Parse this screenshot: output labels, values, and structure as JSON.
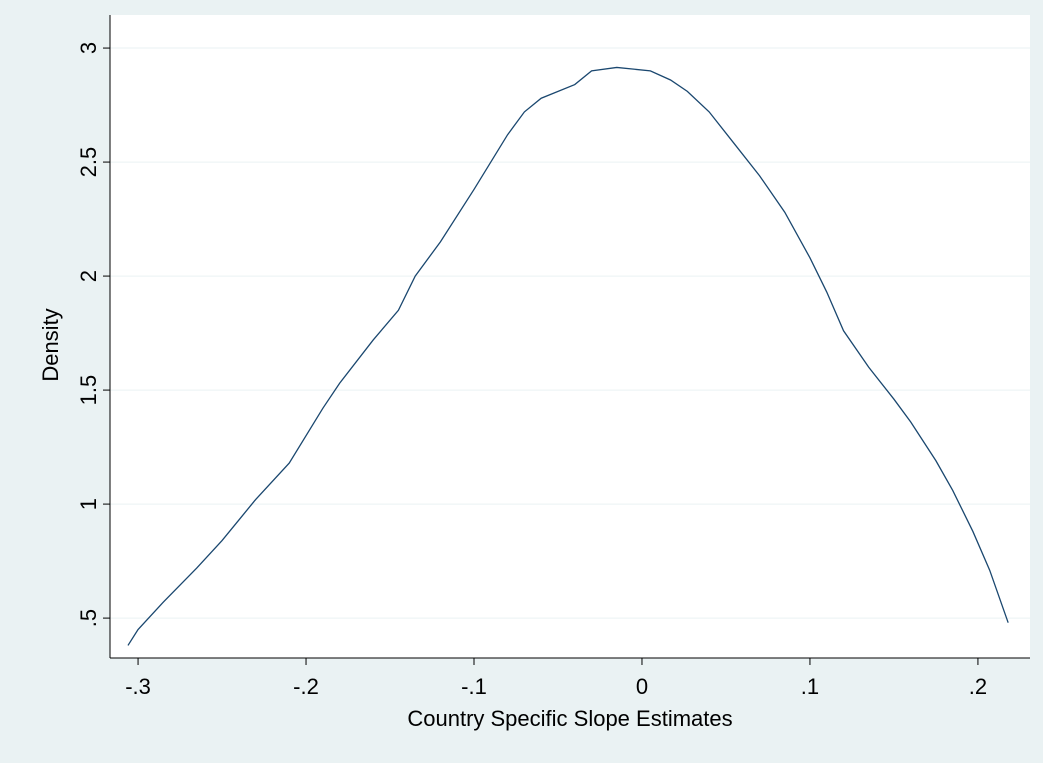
{
  "chart_data": {
    "type": "line",
    "x_label": "Country Specific Slope Estimates",
    "y_label": "Density",
    "x": [
      -0.306,
      -0.3,
      -0.285,
      -0.265,
      -0.25,
      -0.24,
      -0.23,
      -0.21,
      -0.19,
      -0.18,
      -0.16,
      -0.145,
      -0.135,
      -0.12,
      -0.1,
      -0.08,
      -0.07,
      -0.06,
      -0.04,
      -0.03,
      -0.015,
      0.005,
      0.017,
      0.027,
      0.04,
      0.055,
      0.07,
      0.085,
      0.1,
      0.11,
      0.12,
      0.135,
      0.15,
      0.16,
      0.175,
      0.185,
      0.197,
      0.207,
      0.218
    ],
    "series": [
      {
        "color": "#1a476f",
        "values": [
          0.38,
          0.45,
          0.57,
          0.72,
          0.84,
          0.93,
          1.02,
          1.18,
          1.42,
          1.53,
          1.72,
          1.85,
          2.0,
          2.15,
          2.38,
          2.62,
          2.72,
          2.78,
          2.84,
          2.9,
          2.915,
          2.9,
          2.86,
          2.81,
          2.72,
          2.58,
          2.44,
          2.28,
          2.08,
          1.93,
          1.76,
          1.6,
          1.46,
          1.36,
          1.19,
          1.06,
          0.88,
          0.71,
          0.48
        ]
      }
    ],
    "xlim": [
      -0.3167,
      0.231
    ],
    "ylim": [
      0.325,
      3.145
    ],
    "xticks": [
      {
        "value": -0.3,
        "label": "-.3"
      },
      {
        "value": -0.2,
        "label": "-.2"
      },
      {
        "value": -0.1,
        "label": "-.1"
      },
      0,
      {
        "value": 0.1,
        "label": ".1"
      },
      {
        "value": 0.2,
        "label": ".2"
      }
    ],
    "yticks": [
      {
        "value": 0.5,
        "label": ".5"
      },
      1,
      1.5,
      2,
      2.5,
      3
    ],
    "grid": true
  }
}
